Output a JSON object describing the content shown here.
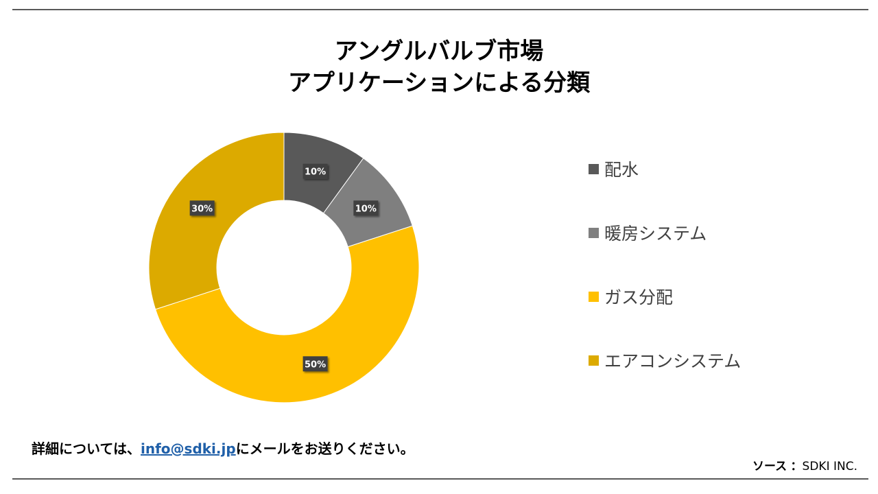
{
  "title": {
    "line1": "アングルバルブ市場",
    "line2": "アプリケーションによる分類"
  },
  "chart_data": {
    "type": "pie",
    "donut": true,
    "categories": [
      "配水",
      "暖房システム",
      "ガス分配",
      "エアコンシステム"
    ],
    "values": [
      10,
      10,
      50,
      30
    ],
    "labels": [
      "10%",
      "10%",
      "50%",
      "30%"
    ],
    "colors": [
      "#595959",
      "#7f7f7f",
      "#ffc000",
      "#dcaa00"
    ],
    "legend_position": "right"
  },
  "footer": {
    "prefix": "詳細については、",
    "email": "info@sdki.jp",
    "suffix": "にメールをお送りください。"
  },
  "source": {
    "label": "ソース",
    "separator": "：",
    "value": "SDKI INC."
  }
}
